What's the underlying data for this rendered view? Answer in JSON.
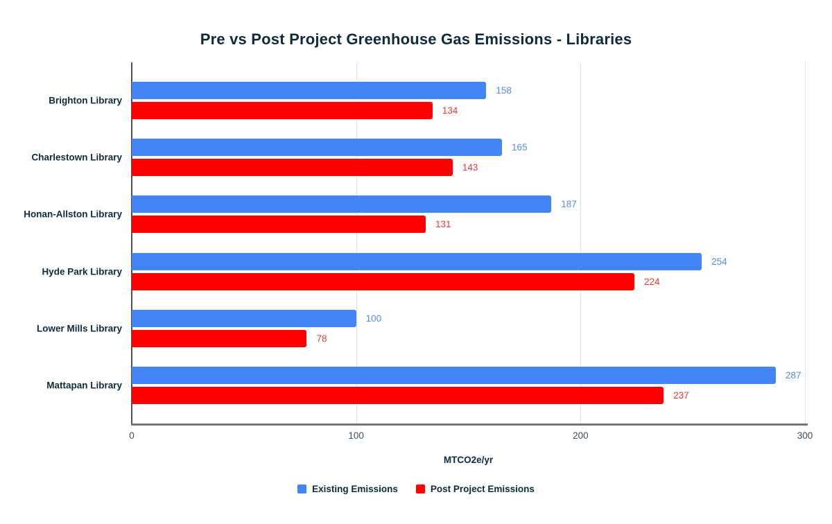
{
  "title": "Pre vs Post Project Greenhouse Gas Emissions - Libraries",
  "chart_data": {
    "type": "bar",
    "orientation": "horizontal",
    "title": "Pre vs Post Project Greenhouse Gas Emissions - Libraries",
    "categories": [
      "Brighton Library",
      "Charlestown Library",
      "Honan-Allston Library",
      "Hyde Park Library",
      "Lower Mills Library",
      "Mattapan Library"
    ],
    "series": [
      {
        "name": "Existing Emissions",
        "color": "#4285f4",
        "label_color": "#548aee",
        "values": [
          158,
          165,
          187,
          254,
          100,
          287
        ]
      },
      {
        "name": "Post Project Emissions",
        "color": "#ff0000",
        "label_color": "#f23b31",
        "values": [
          134,
          143,
          131,
          224,
          78,
          237
        ]
      }
    ],
    "xlabel": "MTCO2e/yr",
    "x_ticks": [
      0,
      100,
      200,
      300
    ],
    "xlim": [
      0,
      300
    ],
    "grid": true,
    "gridline_color": "#e3e3e3",
    "legend_position": "bottom"
  }
}
